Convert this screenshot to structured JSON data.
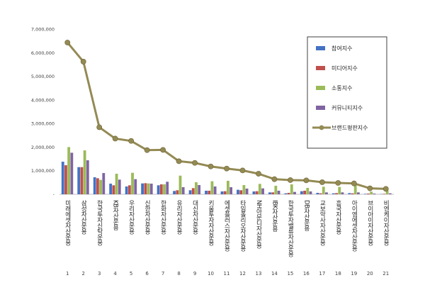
{
  "chart_data": {
    "type": "bar",
    "title": "",
    "xlabel": "",
    "ylabel": "",
    "ylim": [
      0,
      7000000
    ],
    "y_ticks": [
      "7,000,000",
      "6,000,000",
      "5,000,000",
      "4,000,000",
      "3,000,000",
      "2,000,000",
      "1,000,000",
      "-"
    ],
    "grid": false,
    "legend_position": "right",
    "categories": [
      "미래에셋자산운용",
      "삼성자산운용",
      "한국투자신탁운용",
      "KB자산운용",
      "우리자산운용",
      "신한자산운용",
      "한화자산운용",
      "유리자산운용",
      "대신자산운용",
      "키움투자자산운용",
      "에셋플러스자산운용",
      "타임폴리오자산운용",
      "NH아문디자산운용",
      "IBK자산운용",
      "한국투자밸류자산운용",
      "DB자산운용",
      "교보악사자산운용",
      "흥국자산운용",
      "아이엠에셋자산운용",
      "브이아이자산운용",
      "비엔케이자산운용"
    ],
    "category_numbers": [
      "1",
      "2",
      "3",
      "4",
      "5",
      "6",
      "7",
      "8",
      "9",
      "10",
      "11",
      "12",
      "13",
      "14",
      "15",
      "16",
      "17",
      "18",
      "19",
      "20",
      "21"
    ],
    "series": [
      {
        "name": "참여지수",
        "kind": "bar",
        "color": "#4472c4",
        "values": [
          1380000,
          1150000,
          720000,
          450000,
          330000,
          460000,
          380000,
          140000,
          170000,
          150000,
          120000,
          190000,
          120000,
          80000,
          40000,
          130000,
          60000,
          40000,
          50000,
          20000,
          10000
        ]
      },
      {
        "name": "미디어지수",
        "kind": "bar",
        "color": "#c0504d",
        "values": [
          1230000,
          1150000,
          680000,
          380000,
          380000,
          470000,
          420000,
          170000,
          260000,
          150000,
          130000,
          170000,
          130000,
          80000,
          60000,
          150000,
          40000,
          50000,
          40000,
          30000,
          20000
        ]
      },
      {
        "name": "소통지수",
        "kind": "bar",
        "color": "#9bbb59",
        "values": [
          2000000,
          1860000,
          610000,
          870000,
          910000,
          460000,
          420000,
          790000,
          510000,
          550000,
          570000,
          390000,
          440000,
          360000,
          420000,
          270000,
          320000,
          310000,
          380000,
          110000,
          160000
        ]
      },
      {
        "name": "커뮤니티지수",
        "kind": "bar",
        "color": "#8064a2",
        "values": [
          1760000,
          1440000,
          900000,
          620000,
          640000,
          450000,
          530000,
          300000,
          390000,
          330000,
          300000,
          240000,
          250000,
          150000,
          100000,
          120000,
          80000,
          80000,
          80000,
          30000,
          40000
        ]
      },
      {
        "name": "브랜드평판지수",
        "kind": "line",
        "color": "#948a54",
        "values": [
          6430000,
          5620000,
          2840000,
          2360000,
          2260000,
          1870000,
          1880000,
          1400000,
          1330000,
          1180000,
          1090000,
          1010000,
          870000,
          640000,
          600000,
          590000,
          510000,
          480000,
          460000,
          250000,
          230000
        ]
      }
    ]
  }
}
